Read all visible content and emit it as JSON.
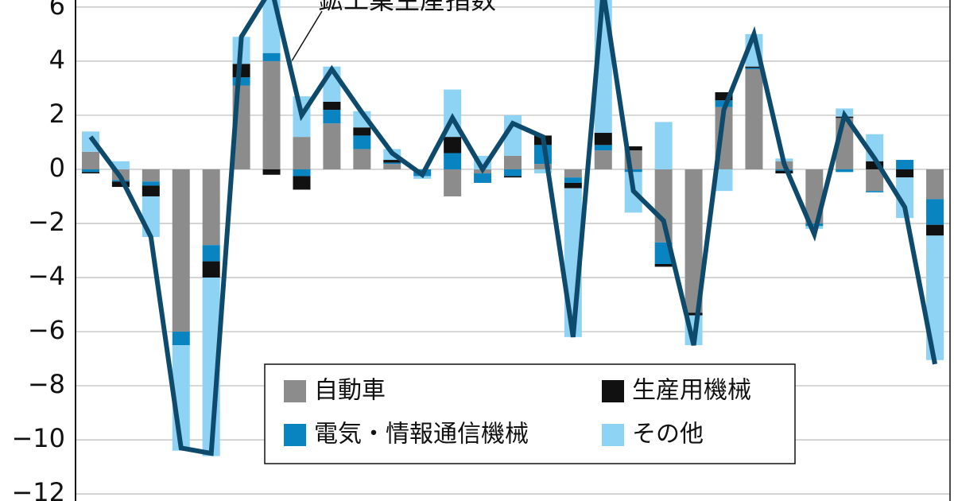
{
  "chart_data": {
    "type": "bar",
    "categories": [
      null,
      null,
      null,
      null,
      null,
      null,
      null,
      null,
      null,
      null,
      null,
      null,
      null,
      null,
      null,
      null,
      null,
      null,
      null,
      null,
      null,
      null,
      null,
      null,
      null,
      null,
      null,
      null,
      null
    ],
    "series": [
      {
        "name": "自動車",
        "color": "#8c8c8c",
        "values": [
          0.65,
          -0.4,
          -0.45,
          -6.0,
          -2.8,
          3.1,
          4.0,
          1.2,
          1.7,
          0.75,
          0.2,
          0,
          -1.0,
          -0.15,
          0.5,
          0.2,
          -0.3,
          0.7,
          0.7,
          -2.7,
          -5.3,
          2.3,
          3.7,
          0.3,
          -2.0,
          1.9,
          -0.8,
          0,
          -1.1
        ]
      },
      {
        "name": "電気・情報通信機械",
        "color": "#0a84c0",
        "values": [
          -0.1,
          -0.05,
          -0.15,
          -0.5,
          -0.6,
          0.3,
          0.3,
          -0.25,
          0.5,
          0.5,
          0.05,
          -0.25,
          0.6,
          -0.35,
          -0.25,
          0.7,
          -0.2,
          0.2,
          -0.1,
          -0.8,
          0,
          0.25,
          0.05,
          -0.05,
          -0.1,
          -0.1,
          -0.05,
          0.35,
          -0.95
        ]
      },
      {
        "name": "生産用機械",
        "color": "#111111",
        "values": [
          -0.05,
          -0.2,
          -0.4,
          0,
          -0.6,
          0.5,
          -0.2,
          -0.5,
          0.3,
          0.3,
          0.1,
          0,
          0.6,
          0,
          -0.05,
          0.35,
          -0.2,
          0.45,
          0.15,
          -0.1,
          -0.1,
          0.3,
          0.05,
          -0.1,
          0,
          0.05,
          0.3,
          -0.3,
          -0.4
        ]
      },
      {
        "name": "その他",
        "color": "#8fd3f4",
        "values": [
          0.75,
          0.3,
          -1.5,
          -3.9,
          -6.6,
          1.0,
          2.5,
          1.5,
          1.3,
          0.6,
          0.4,
          -0.1,
          1.75,
          0.5,
          1.5,
          -0.15,
          -5.5,
          5.5,
          -1.5,
          1.75,
          -1.1,
          -0.8,
          1.2,
          0.1,
          -0.1,
          0.3,
          1.0,
          -1.5,
          -4.6
        ]
      },
      {
        "name": "鉱工業生産指数",
        "type": "line",
        "color": "#0e4a6b",
        "values": [
          1.2,
          -0.3,
          -2.5,
          -10.3,
          -10.5,
          4.9,
          6.7,
          2.0,
          3.7,
          2.1,
          0.6,
          -0.2,
          1.9,
          0.0,
          1.7,
          1.2,
          -6.2,
          6.6,
          -0.8,
          -1.9,
          -6.5,
          2.2,
          5.0,
          0.2,
          -2.4,
          2.0,
          0.4,
          -1.4,
          -7.2
        ]
      }
    ],
    "ylim": [
      -12.26,
      6.26
    ],
    "yticks": [
      {
        "value": -12,
        "label": "−12"
      },
      {
        "value": -10,
        "label": "−10"
      },
      {
        "value": -8,
        "label": "−8"
      },
      {
        "value": -6,
        "label": "−6"
      },
      {
        "value": -4,
        "label": "−4"
      },
      {
        "value": -2,
        "label": "−2"
      },
      0,
      2,
      4,
      6
    ],
    "grid": true
  }
}
